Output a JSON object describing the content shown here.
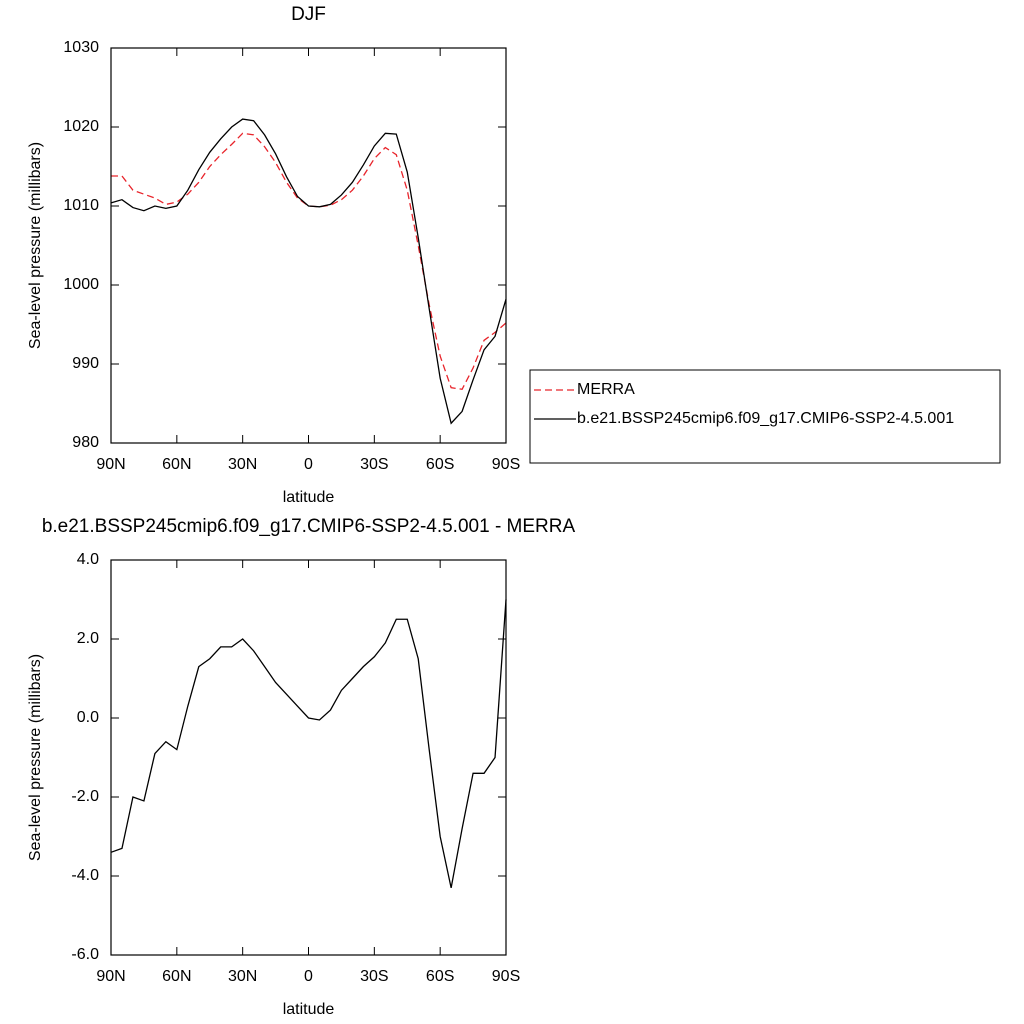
{
  "chart_data": [
    {
      "type": "line",
      "title": "DJF",
      "xlabel": "latitude",
      "ylabel": "Sea-level pressure (millibars)",
      "x": [
        90,
        85,
        80,
        75,
        70,
        65,
        60,
        55,
        50,
        45,
        40,
        35,
        30,
        25,
        20,
        15,
        10,
        5,
        0,
        -5,
        -10,
        -15,
        -20,
        -25,
        -30,
        -35,
        -40,
        -45,
        -50,
        -55,
        -60,
        -65,
        -70,
        -75,
        -80,
        -85,
        -90
      ],
      "xlim": [
        90,
        -90
      ],
      "xticks": [
        {
          "value": 90,
          "label": "90N"
        },
        {
          "value": 60,
          "label": "60N"
        },
        {
          "value": 30,
          "label": "30N"
        },
        0,
        {
          "value": -30,
          "label": "30S"
        },
        {
          "value": -60,
          "label": "60S"
        },
        {
          "value": -90,
          "label": "90S"
        }
      ],
      "ylim": [
        980,
        1030
      ],
      "yticks": [
        980,
        990,
        1000,
        1010,
        1020,
        1030
      ],
      "legend": "right",
      "series": [
        {
          "name": "MERRA",
          "color": "#e8242b",
          "style": "dashed",
          "values": [
            1013.8,
            1013.8,
            1012,
            1011.5,
            1011,
            1010.2,
            1010.5,
            1011.5,
            1013,
            1015,
            1016.5,
            1017.8,
            1019.2,
            1019,
            1017.5,
            1015.5,
            1013,
            1011,
            1010,
            1009.9,
            1010.1,
            1010.8,
            1012,
            1013.8,
            1016,
            1017.4,
            1016.5,
            1012,
            1005,
            997.5,
            991,
            987,
            986.8,
            989.5,
            993,
            994,
            995.2
          ]
        },
        {
          "name": "b.e21.BSSP245cmip6.f09_g17.CMIP6-SSP2-4.5.001",
          "color": "#000000",
          "style": "solid",
          "values": [
            1010.4,
            1010.8,
            1009.8,
            1009.4,
            1010,
            1009.7,
            1010,
            1012,
            1014.6,
            1016.8,
            1018.5,
            1020,
            1021,
            1020.8,
            1019,
            1016.6,
            1013.7,
            1011.2,
            1010,
            1009.9,
            1010.2,
            1011.4,
            1013,
            1015.2,
            1017.6,
            1019.2,
            1019.1,
            1014.3,
            1006,
            997,
            988.2,
            982.5,
            984,
            988,
            991.8,
            993.5,
            998.2
          ]
        }
      ]
    },
    {
      "type": "line",
      "title": "b.e21.BSSP245cmip6.f09_g17.CMIP6-SSP2-4.5.001 - MERRA",
      "xlabel": "latitude",
      "ylabel": "Sea-level pressure (millibars)",
      "x": [
        90,
        85,
        80,
        75,
        70,
        65,
        60,
        55,
        50,
        45,
        40,
        35,
        30,
        25,
        20,
        15,
        10,
        5,
        0,
        -5,
        -10,
        -15,
        -20,
        -25,
        -30,
        -35,
        -40,
        -45,
        -50,
        -55,
        -60,
        -65,
        -70,
        -75,
        -80,
        -85,
        -90
      ],
      "xlim": [
        90,
        -90
      ],
      "xticks": [
        {
          "value": 90,
          "label": "90N"
        },
        {
          "value": 60,
          "label": "60N"
        },
        {
          "value": 30,
          "label": "30N"
        },
        0,
        {
          "value": -30,
          "label": "30S"
        },
        {
          "value": -60,
          "label": "60S"
        },
        {
          "value": -90,
          "label": "90S"
        }
      ],
      "ylim": [
        -6,
        4
      ],
      "yticks": [
        {
          "value": -6,
          "label": "-6.0"
        },
        {
          "value": -4,
          "label": "-4.0"
        },
        {
          "value": -2,
          "label": "-2.0"
        },
        {
          "value": 0,
          "label": "0.0"
        },
        {
          "value": 2,
          "label": "2.0"
        },
        {
          "value": 4,
          "label": "4.0"
        }
      ],
      "series": [
        {
          "color": "#000000",
          "style": "solid",
          "values": [
            -3.4,
            -3.3,
            -2.0,
            -2.1,
            -0.9,
            -0.6,
            -0.8,
            0.3,
            1.3,
            1.5,
            1.8,
            1.8,
            2.0,
            1.7,
            1.3,
            0.9,
            0.6,
            0.3,
            0.0,
            -0.05,
            0.2,
            0.7,
            1.0,
            1.3,
            1.55,
            1.9,
            2.5,
            2.5,
            1.5,
            -0.8,
            -3.0,
            -4.3,
            -2.8,
            -1.4,
            -1.4,
            -1.0,
            3.0
          ]
        }
      ]
    }
  ]
}
